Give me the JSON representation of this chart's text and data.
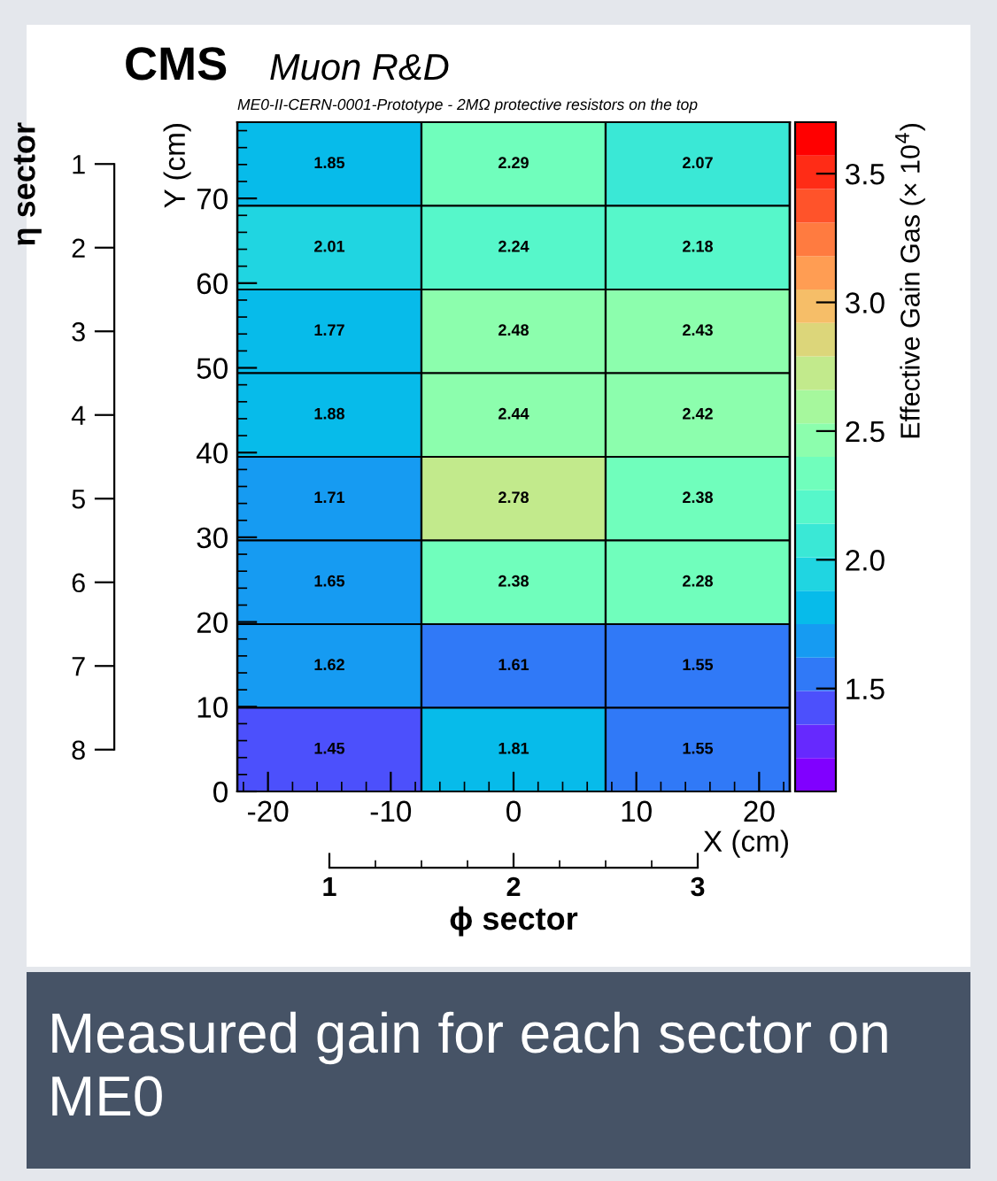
{
  "chart_data": {
    "type": "heatmap",
    "title": "CMS",
    "subtitle": "Muon R&D",
    "annotations": [
      "ME0-II-CERN-0001-Prototype - 2MΩ protective resistors on the top",
      "Measured gain for each sector on ME0"
    ],
    "xlabel": "ϕ sector",
    "ylabel": "η sector",
    "x2label": "X (cm)",
    "y2label": "Y (cm)",
    "clabel": "Effective Gain Gas (× 10$^{4}$)",
    "x2lim": [
      -22.5,
      22.5
    ],
    "x2ticks": [
      -20,
      -10,
      0,
      10,
      20
    ],
    "y2lim": [
      0,
      79
    ],
    "y2ticks": [
      0,
      10,
      20,
      30,
      40,
      50,
      60,
      70
    ],
    "categories": [
      "1",
      "2",
      "3"
    ],
    "y_categories": [
      "1",
      "2",
      "3",
      "4",
      "5",
      "6",
      "7",
      "8"
    ],
    "cells": [
      [
        1.85,
        2.29,
        2.07
      ],
      [
        2.01,
        2.24,
        2.18
      ],
      [
        1.77,
        2.48,
        2.43
      ],
      [
        1.88,
        2.44,
        2.42
      ],
      [
        1.71,
        2.78,
        2.38
      ],
      [
        1.65,
        2.38,
        2.28
      ],
      [
        1.62,
        1.61,
        1.55
      ],
      [
        1.45,
        1.81,
        1.55
      ]
    ],
    "data_labels": true,
    "clim": [
      1.1,
      3.7
    ],
    "cticks": [
      1.5,
      {
        "value": 2,
        "label": "2.0"
      },
      2.5,
      {
        "value": 3,
        "label": "3.0"
      },
      3.5
    ]
  }
}
